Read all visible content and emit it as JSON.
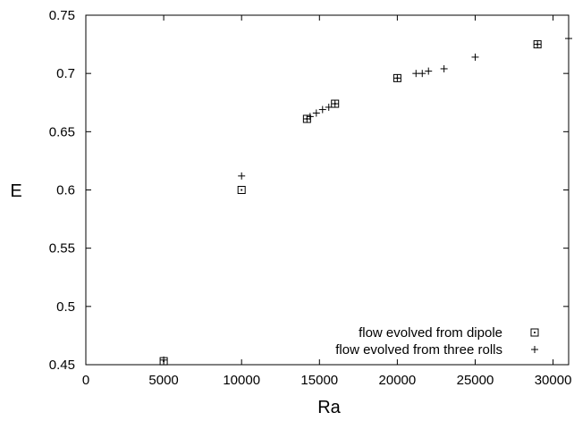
{
  "chart_data": {
    "type": "scatter",
    "title": "",
    "xlabel": "Ra",
    "ylabel": "E",
    "xlim": [
      0,
      31000
    ],
    "ylim": [
      0.45,
      0.75
    ],
    "xticks": [
      0,
      5000,
      10000,
      15000,
      20000,
      25000,
      30000
    ],
    "yticks": [
      0.45,
      0.5,
      0.55,
      0.6,
      0.65,
      0.7,
      0.75
    ],
    "xtick_labels": [
      "0",
      "5000",
      "10000",
      "15000",
      "20000",
      "25000",
      "30000"
    ],
    "ytick_labels": [
      "0.45",
      "0.5",
      "0.55",
      "0.6",
      "0.65",
      "0.7",
      "0.75"
    ],
    "grid": false,
    "legend_position": "bottom-right",
    "series": [
      {
        "name": "flow evolved from dipole",
        "marker": "square-dot",
        "color": "#000000",
        "points": [
          [
            5000,
            0.453
          ],
          [
            10000,
            0.6
          ],
          [
            14200,
            0.661
          ],
          [
            16000,
            0.674
          ],
          [
            20000,
            0.696
          ],
          [
            29000,
            0.725
          ]
        ]
      },
      {
        "name": "flow evolved from three rolls",
        "marker": "plus",
        "color": "#000000",
        "points": [
          [
            5000,
            0.454
          ],
          [
            10000,
            0.612
          ],
          [
            14200,
            0.661
          ],
          [
            14400,
            0.663
          ],
          [
            14800,
            0.666
          ],
          [
            15200,
            0.669
          ],
          [
            15600,
            0.671
          ],
          [
            16000,
            0.674
          ],
          [
            20000,
            0.696
          ],
          [
            21200,
            0.7
          ],
          [
            21600,
            0.7
          ],
          [
            22000,
            0.702
          ],
          [
            23000,
            0.704
          ],
          [
            25000,
            0.714
          ],
          [
            29000,
            0.725
          ],
          [
            31000,
            0.73
          ]
        ]
      }
    ]
  }
}
